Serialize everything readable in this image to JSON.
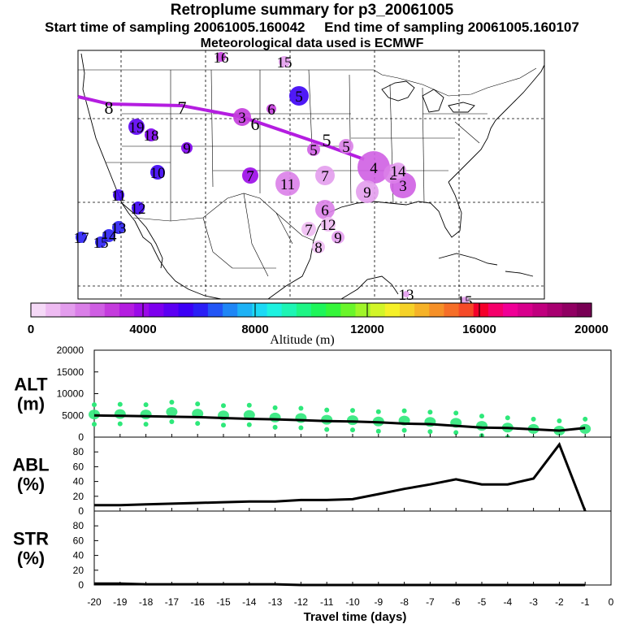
{
  "title": "Retroplume summary for p3_20061005",
  "subtitle_start": "Start time of sampling 20061005.160042",
  "subtitle_end": "End time of sampling 20061005.160107",
  "met_line": "Meteorological data used is ECMWF",
  "colorbar": {
    "label": "Altitude (m)",
    "ticks": [
      "0",
      "4000",
      "8000",
      "12000",
      "16000",
      "20000"
    ],
    "colors": [
      "#f5d9f7",
      "#eebbf2",
      "#e39ded",
      "#da7fe8",
      "#cf5fe3",
      "#c43cdd",
      "#b41de0",
      "#9b0ae8",
      "#7d00ee",
      "#5c00f2",
      "#3c00f5",
      "#2a1ff5",
      "#2255f5",
      "#1f86f5",
      "#1eb2f5",
      "#1cd9f5",
      "#1ef2e0",
      "#1ef5b4",
      "#1ef585",
      "#1ef55a",
      "#35f53a",
      "#6af52a",
      "#a0f528",
      "#d2f528",
      "#f5f028",
      "#f5d228",
      "#f5b228",
      "#f59028",
      "#f56e28",
      "#f54a28",
      "#f5002a",
      "#f5006a",
      "#f00096",
      "#d8008c",
      "#c0007e",
      "#a80070",
      "#900062",
      "#780054"
    ]
  },
  "map": {
    "trajectory_labels": [
      "8",
      "7",
      "6",
      "5"
    ],
    "points": [
      {
        "label": "16",
        "color": "#c43cdd"
      },
      {
        "label": "15",
        "color": "#e39ded"
      },
      {
        "label": "5",
        "color": "#3c00f5"
      },
      {
        "label": "3",
        "color": "#c43cdd"
      },
      {
        "label": "6",
        "color": "#c43cdd"
      },
      {
        "label": "19",
        "color": "#5c00f2"
      },
      {
        "label": "18",
        "color": "#7d00ee"
      },
      {
        "label": "9",
        "color": "#7d00ee"
      },
      {
        "label": "10",
        "color": "#3c00f5"
      },
      {
        "label": "7",
        "color": "#9b0ae8"
      },
      {
        "label": "5",
        "color": "#cf5fe3"
      },
      {
        "label": "5",
        "color": "#da7fe8"
      },
      {
        "label": "11",
        "color": "#da7fe8"
      },
      {
        "label": "7",
        "color": "#e39ded"
      },
      {
        "label": "4",
        "color": "#cf5fe3"
      },
      {
        "label": "3",
        "color": "#cf5fe3"
      },
      {
        "label": "2",
        "color": "#da7fe8"
      },
      {
        "label": "14",
        "color": "#e39ded"
      },
      {
        "label": "9",
        "color": "#e39ded"
      },
      {
        "label": "6",
        "color": "#da7fe8"
      },
      {
        "label": "12",
        "color": "#eebbf2"
      },
      {
        "label": "7",
        "color": "#eebbf2"
      },
      {
        "label": "9",
        "color": "#e39ded"
      },
      {
        "label": "8",
        "color": "#eebbf2"
      },
      {
        "label": "11",
        "color": "#3c00f5"
      },
      {
        "label": "12",
        "color": "#3c00f5"
      },
      {
        "label": "13",
        "color": "#2a1ff5"
      },
      {
        "label": "14",
        "color": "#2a1ff5"
      },
      {
        "label": "15",
        "color": "#2a1ff5"
      },
      {
        "label": "17",
        "color": "#2a1ff5"
      },
      {
        "label": "13",
        "color": "#e39ded"
      },
      {
        "label": "15",
        "color": "#e39ded"
      }
    ]
  },
  "chart_data": [
    {
      "type": "line",
      "name": "ALT",
      "ylabel_top": "ALT",
      "ylabel_bottom": "(m)",
      "ylim": [
        0,
        20000
      ],
      "yticks": [
        0,
        5000,
        10000,
        15000,
        20000
      ],
      "x": [
        -20,
        -19,
        -18,
        -17,
        -16,
        -15,
        -14,
        -13,
        -12,
        -11,
        -10,
        -9,
        -8,
        -7,
        -6,
        -5,
        -4,
        -3,
        -2,
        -1
      ],
      "values": [
        5000,
        4900,
        4800,
        4700,
        4600,
        4400,
        4200,
        4100,
        3900,
        3700,
        3600,
        3400,
        3100,
        3000,
        2600,
        2200,
        2100,
        1800,
        1500,
        2100
      ],
      "scatter_x": [
        -20,
        -19,
        -18,
        -17,
        -16,
        -15,
        -14,
        -13,
        -12,
        -11,
        -10,
        -9,
        -8,
        -7,
        -6,
        -5,
        -4,
        -3,
        -2,
        -1
      ],
      "scatter_y": [
        5200,
        5300,
        5200,
        5800,
        5400,
        5000,
        5100,
        4500,
        4400,
        4000,
        3900,
        3600,
        3800,
        3500,
        3300,
        2600,
        2200,
        1900,
        1500,
        1900
      ]
    },
    {
      "type": "line",
      "name": "ABL",
      "ylabel_top": "ABL",
      "ylabel_bottom": "(%)",
      "ylim": [
        0,
        100
      ],
      "yticks": [
        0,
        20,
        40,
        60,
        80
      ],
      "x": [
        -20,
        -19,
        -18,
        -17,
        -16,
        -15,
        -14,
        -13,
        -12,
        -11,
        -10,
        -9,
        -8,
        -7,
        -6,
        -5,
        -4,
        -3,
        -2,
        -1
      ],
      "values": [
        8,
        8,
        9,
        10,
        11,
        12,
        13,
        13,
        15,
        15,
        16,
        23,
        30,
        36,
        43,
        36,
        36,
        44,
        90,
        0
      ]
    },
    {
      "type": "line",
      "name": "STR",
      "ylabel_top": "STR",
      "ylabel_bottom": "(%)",
      "ylim": [
        0,
        100
      ],
      "yticks": [
        0,
        20,
        40,
        60,
        80
      ],
      "x": [
        -20,
        -19,
        -18,
        -17,
        -16,
        -15,
        -14,
        -13,
        -12,
        -11,
        -10,
        -9,
        -8,
        -7,
        -6,
        -5,
        -4,
        -3,
        -2,
        -1
      ],
      "values": [
        2,
        2,
        1,
        1,
        1,
        1,
        1,
        1,
        0,
        0,
        0,
        0,
        0,
        0,
        0,
        0,
        0,
        0,
        0,
        0
      ]
    }
  ],
  "xaxis": {
    "ticks": [
      "-20",
      "-19",
      "-18",
      "-17",
      "-16",
      "-15",
      "-14",
      "-13",
      "-12",
      "-11",
      "-10",
      "-9",
      "-8",
      "-7",
      "-6",
      "-5",
      "-4",
      "-3",
      "-2",
      "-1",
      "0"
    ],
    "label": "Travel time (days)"
  }
}
